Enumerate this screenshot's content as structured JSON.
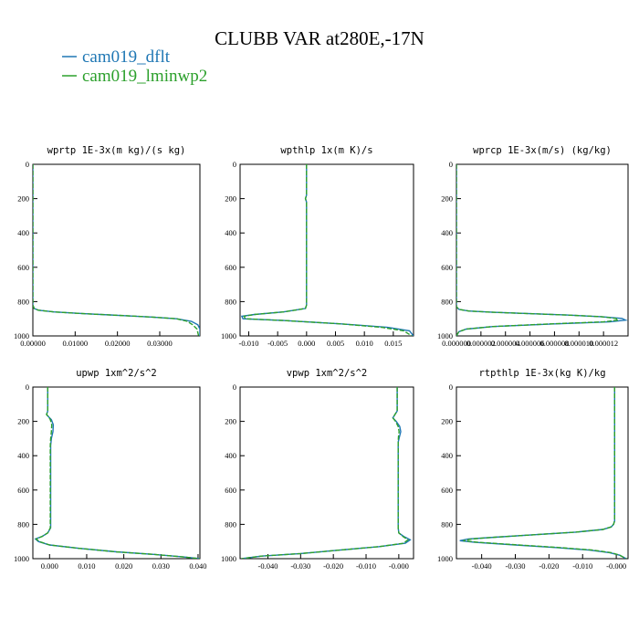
{
  "figure": {
    "title": "CLUBB VAR at280E,-17N",
    "legend": [
      {
        "label": "cam019_dflt",
        "color": "#1f77b4"
      },
      {
        "label": "cam019_lminwp2",
        "color": "#2ca02c"
      }
    ]
  },
  "chart_data": [
    {
      "type": "line",
      "title": "wprtp  1E-3x(m kg)/(s kg)",
      "xlim": [
        0.0,
        0.0395
      ],
      "xticks": [
        0.0,
        0.01,
        0.02,
        0.03
      ],
      "xtick_labels": [
        "0.00000",
        "0.01000",
        "0.02000",
        "0.03000"
      ],
      "ylim": [
        1000,
        0
      ],
      "yticks": [
        0,
        200,
        400,
        600,
        800,
        1000
      ],
      "ytick_labels": [
        "0",
        "200",
        "400",
        "600",
        "800",
        "1000"
      ],
      "series": [
        {
          "name": "cam019_dflt",
          "color": "#1f77b4",
          "x": [
            0,
            0,
            0.0003,
            0.0013,
            0.005,
            0.012,
            0.02,
            0.028,
            0.034,
            0.0375,
            0.039,
            0.0395,
            0.0395
          ],
          "y": [
            0,
            820,
            840,
            850,
            860,
            870,
            880,
            890,
            900,
            915,
            935,
            960,
            1000
          ]
        },
        {
          "name": "cam019_lminwp2",
          "color": "#2ca02c",
          "x": [
            0,
            0,
            0.0003,
            0.0013,
            0.005,
            0.012,
            0.02,
            0.028,
            0.034,
            0.0365,
            0.0378,
            0.0388,
            0.0392
          ],
          "y": [
            0,
            820,
            840,
            850,
            860,
            870,
            880,
            890,
            900,
            915,
            935,
            960,
            1000
          ]
        }
      ]
    },
    {
      "type": "line",
      "title": "wpthlp  1x(m K)/s",
      "xlim": [
        -0.0115,
        0.0185
      ],
      "xticks": [
        -0.01,
        -0.005,
        0.0,
        0.005,
        0.01,
        0.015
      ],
      "xtick_labels": [
        "-0.010",
        "-0.005",
        "0.000",
        "0.005",
        "0.010",
        "0.015"
      ],
      "ylim": [
        1000,
        0
      ],
      "yticks": [
        0,
        200,
        400,
        600,
        800,
        1000
      ],
      "ytick_labels": [
        "0",
        "200",
        "400",
        "600",
        "800",
        "1000"
      ],
      "series": [
        {
          "name": "cam019_dflt",
          "color": "#1f77b4",
          "x": [
            0.0,
            0.0,
            -0.0002,
            0.0,
            0.0,
            -0.0002,
            -0.004,
            -0.009,
            -0.0112,
            -0.011,
            -0.004,
            0.006,
            0.014,
            0.0178,
            0.0185
          ],
          "y": [
            0,
            180,
            200,
            220,
            820,
            840,
            860,
            875,
            885,
            900,
            910,
            930,
            950,
            970,
            1000
          ]
        },
        {
          "name": "cam019_lminwp2",
          "color": "#2ca02c",
          "x": [
            0.0,
            0.0,
            -0.0002,
            0.0,
            0.0,
            -0.0002,
            -0.004,
            -0.009,
            -0.0108,
            -0.0106,
            -0.004,
            0.006,
            0.013,
            0.0168,
            0.0182
          ],
          "y": [
            0,
            180,
            200,
            220,
            820,
            840,
            860,
            875,
            885,
            900,
            910,
            930,
            950,
            970,
            1000
          ]
        }
      ]
    },
    {
      "type": "line",
      "title": "wprcp  1E-3x(m/s) (kg/kg)",
      "xlim": [
        0.0,
        1.4e-05
      ],
      "xticks": [
        0.0,
        2e-06,
        4e-06,
        6e-06,
        8e-06,
        1e-05,
        1.2e-05
      ],
      "xtick_labels": [
        "0.000000",
        "0.000002",
        "0.000004",
        "0.000006",
        "0.000008",
        "0.000010",
        "0.000012"
      ],
      "ylim": [
        1000,
        0
      ],
      "yticks": [
        0,
        200,
        400,
        600,
        800,
        1000
      ],
      "ytick_labels": [
        "0",
        "200",
        "400",
        "600",
        "800",
        "1000"
      ],
      "series": [
        {
          "name": "cam019_dflt",
          "color": "#1f77b4",
          "x": [
            0,
            0,
            2e-07,
            1e-06,
            3e-06,
            6e-06,
            9e-06,
            1.18e-05,
            1.35e-05,
            1.38e-05,
            1.25e-05,
            8e-06,
            3e-06,
            8e-07,
            2e-07,
            0.0
          ],
          "y": [
            0,
            830,
            845,
            855,
            862,
            870,
            878,
            888,
            898,
            908,
            918,
            930,
            945,
            960,
            975,
            1000
          ]
        },
        {
          "name": "cam019_lminwp2",
          "color": "#2ca02c",
          "x": [
            0,
            0,
            2e-07,
            1e-06,
            3e-06,
            6e-06,
            9e-06,
            1.18e-05,
            1.3e-05,
            1.32e-05,
            1.2e-05,
            7.7e-06,
            3e-06,
            8e-07,
            2e-07,
            0.0
          ],
          "y": [
            0,
            830,
            845,
            855,
            862,
            870,
            878,
            888,
            898,
            908,
            918,
            930,
            945,
            960,
            975,
            1000
          ]
        }
      ]
    },
    {
      "type": "line",
      "title": "upwp  1xm^2/s^2",
      "xlim": [
        -0.0045,
        0.0405
      ],
      "xticks": [
        0.0,
        0.01,
        0.02,
        0.03,
        0.04
      ],
      "xtick_labels": [
        "0.000",
        "0.010",
        "0.020",
        "0.030",
        "0.040"
      ],
      "ylim": [
        1000,
        0
      ],
      "yticks": [
        0,
        200,
        400,
        600,
        800,
        1000
      ],
      "ytick_labels": [
        "0",
        "200",
        "400",
        "600",
        "800",
        "1000"
      ],
      "series": [
        {
          "name": "cam019_dflt",
          "color": "#1f77b4",
          "x": [
            -0.0005,
            -0.0005,
            -0.0008,
            -0.0002,
            0.0005,
            0.001,
            0.0009,
            0.0005,
            0.0003,
            0.0003,
            -0.0005,
            -0.002,
            -0.0038,
            -0.003,
            0.0,
            0.008,
            0.018,
            0.028,
            0.036,
            0.0405
          ],
          "y": [
            0,
            140,
            160,
            175,
            190,
            220,
            260,
            300,
            340,
            820,
            850,
            870,
            885,
            900,
            920,
            940,
            960,
            975,
            990,
            1000
          ]
        },
        {
          "name": "cam019_lminwp2",
          "color": "#2ca02c",
          "x": [
            -0.0005,
            -0.0005,
            -0.0008,
            -0.0002,
            0.0002,
            0.0006,
            0.0005,
            0.0003,
            0.0002,
            0.0002,
            -0.0005,
            -0.002,
            -0.0036,
            -0.0028,
            0.0,
            0.008,
            0.018,
            0.028,
            0.036,
            0.0405
          ],
          "y": [
            0,
            140,
            160,
            175,
            190,
            220,
            260,
            300,
            340,
            820,
            850,
            870,
            885,
            900,
            920,
            940,
            960,
            975,
            990,
            1000
          ]
        }
      ]
    },
    {
      "type": "line",
      "title": "vpwp  1xm^2/s^2",
      "xlim": [
        -0.0485,
        0.0045
      ],
      "xticks": [
        -0.04,
        -0.03,
        -0.02,
        -0.01,
        0.0
      ],
      "xtick_labels": [
        "-0.040",
        "-0.030",
        "-0.020",
        "-0.010",
        "-0.000"
      ],
      "ylim": [
        1000,
        0
      ],
      "yticks": [
        0,
        200,
        400,
        600,
        800,
        1000
      ],
      "ytick_labels": [
        "0",
        "200",
        "400",
        "600",
        "800",
        "1000"
      ],
      "series": [
        {
          "name": "cam019_dflt",
          "color": "#1f77b4",
          "x": [
            -0.0005,
            -0.0005,
            -0.0012,
            -0.0018,
            -0.0008,
            0.0003,
            0.0006,
            0.0002,
            -0.0002,
            -0.0002,
            0.0,
            0.0015,
            0.0035,
            0.002,
            -0.006,
            -0.018,
            -0.03,
            -0.042,
            -0.048
          ],
          "y": [
            0,
            140,
            160,
            180,
            200,
            230,
            260,
            290,
            320,
            820,
            850,
            870,
            890,
            910,
            930,
            950,
            970,
            985,
            1000
          ]
        },
        {
          "name": "cam019_lminwp2",
          "color": "#2ca02c",
          "x": [
            -0.0005,
            -0.0005,
            -0.0012,
            -0.0018,
            -0.001,
            -0.0002,
            0.0001,
            -0.0001,
            -0.0002,
            -0.0002,
            0.0,
            0.0012,
            0.0028,
            0.0015,
            -0.006,
            -0.018,
            -0.03,
            -0.042,
            -0.048
          ],
          "y": [
            0,
            140,
            160,
            180,
            200,
            230,
            260,
            290,
            320,
            820,
            850,
            870,
            890,
            910,
            930,
            950,
            970,
            985,
            1000
          ]
        }
      ]
    },
    {
      "type": "line",
      "title": "rtpthlp  1E-3x(kg K)/kg",
      "xlim": [
        -0.0475,
        0.0035
      ],
      "xticks": [
        -0.04,
        -0.03,
        -0.02,
        -0.01,
        0.0
      ],
      "xtick_labels": [
        "-0.040",
        "-0.030",
        "-0.020",
        "-0.010",
        "-0.000"
      ],
      "ylim": [
        1000,
        0
      ],
      "yticks": [
        0,
        200,
        400,
        600,
        800,
        1000
      ],
      "ytick_labels": [
        "0",
        "200",
        "400",
        "600",
        "800",
        "1000"
      ],
      "series": [
        {
          "name": "cam019_dflt",
          "color": "#1f77b4",
          "x": [
            -0.0005,
            -0.0005,
            -0.0008,
            -0.0015,
            -0.004,
            -0.012,
            -0.024,
            -0.036,
            -0.044,
            -0.0465,
            -0.042,
            -0.03,
            -0.018,
            -0.008,
            -0.002,
            0.001,
            0.0025,
            0.003
          ],
          "y": [
            0,
            780,
            800,
            815,
            830,
            845,
            860,
            875,
            885,
            895,
            905,
            920,
            935,
            950,
            965,
            980,
            995,
            1000
          ]
        },
        {
          "name": "cam019_lminwp2",
          "color": "#2ca02c",
          "x": [
            -0.0005,
            -0.0005,
            -0.0008,
            -0.0015,
            -0.004,
            -0.012,
            -0.024,
            -0.036,
            -0.043,
            -0.0455,
            -0.041,
            -0.029,
            -0.017,
            -0.007,
            -0.0015,
            0.001,
            0.0025,
            0.003
          ],
          "y": [
            0,
            780,
            800,
            815,
            830,
            845,
            860,
            875,
            885,
            895,
            905,
            920,
            935,
            950,
            965,
            980,
            995,
            1000
          ]
        }
      ]
    }
  ]
}
